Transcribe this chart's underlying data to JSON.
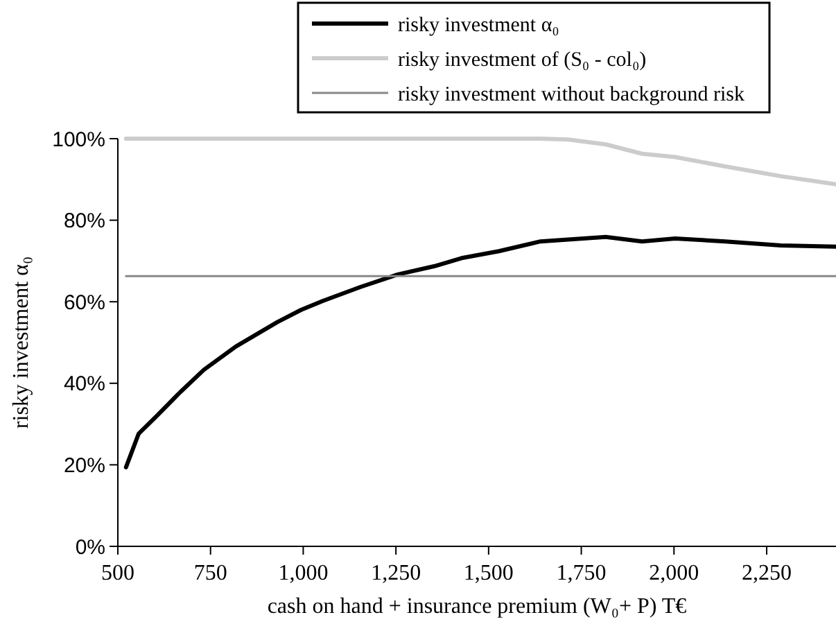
{
  "chart_data": {
    "type": "line",
    "xlabel": "cash on hand + insurance premium (W₀+ P) T€",
    "ylabel": "risky investment α₀",
    "xlim": [
      500,
      2437
    ],
    "ylim": [
      0,
      100
    ],
    "xticks": [
      {
        "value": 500,
        "label": "500"
      },
      {
        "value": 750,
        "label": "750"
      },
      {
        "value": 1000,
        "label": "1,000"
      },
      {
        "value": 1250,
        "label": "1,250"
      },
      {
        "value": 1500,
        "label": "1,500"
      },
      {
        "value": 1750,
        "label": "1,750"
      },
      {
        "value": 2000,
        "label": "2,000"
      },
      {
        "value": 2250,
        "label": "2,250"
      }
    ],
    "yticks": [
      {
        "value": 0,
        "label": "0%"
      },
      {
        "value": 20,
        "label": "20%"
      },
      {
        "value": 40,
        "label": "40%"
      },
      {
        "value": 60,
        "label": "60%"
      },
      {
        "value": 80,
        "label": "80%"
      },
      {
        "value": 100,
        "label": "100%"
      }
    ],
    "grid": false,
    "legend": "top",
    "marker": "none",
    "line_style": "solid",
    "series": [
      {
        "name": "risky investment α₀",
        "color": "#000000",
        "x": [
          522,
          556,
          605,
          668,
          732,
          818,
          930,
          994,
          1053,
          1154,
          1255,
          1353,
          1427,
          1528,
          1640,
          1816,
          1914,
          2003,
          2138,
          2288,
          2437
        ],
        "values": [
          19.4,
          27.6,
          32,
          37.8,
          43.3,
          49,
          55,
          58,
          60.2,
          63.6,
          66.7,
          68.7,
          70.7,
          72.4,
          74.8,
          75.9,
          74.8,
          75.5,
          74.8,
          73.8,
          73.5
        ]
      },
      {
        "name": "risky investment of (S₀ - col₀)",
        "color": "#cccccc",
        "x": [
          522,
          1640,
          1715,
          1816,
          1914,
          2003,
          2138,
          2288,
          2437
        ],
        "values": [
          100,
          100,
          99.8,
          98.6,
          96.3,
          95.5,
          93.2,
          90.8,
          88.8
        ]
      },
      {
        "name": "risky investment without background risk",
        "color": "#888888",
        "x": [
          522,
          2437
        ],
        "values": [
          66.3,
          66.3
        ]
      }
    ]
  }
}
